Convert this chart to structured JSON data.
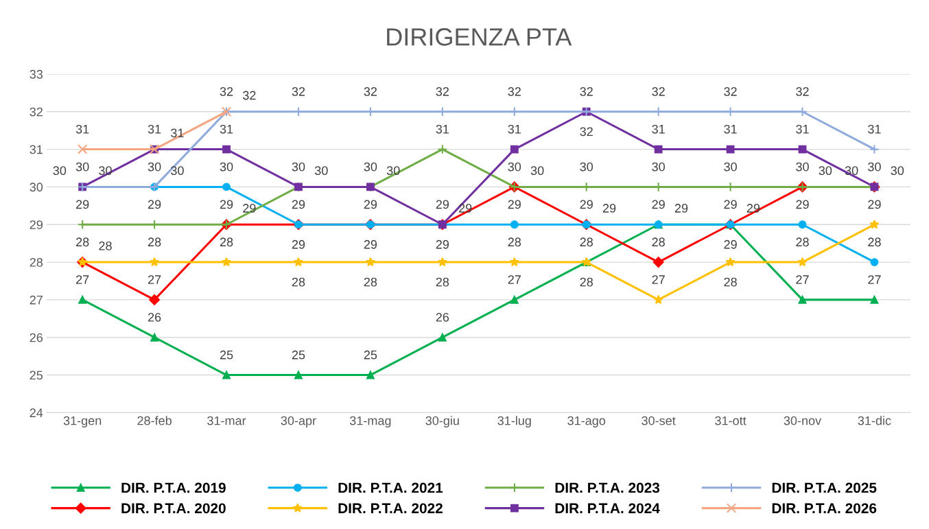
{
  "chart_data": {
    "type": "line",
    "title": "DIRIGENZA PTA",
    "categories": [
      "31-gen",
      "28-feb",
      "31-mar",
      "30-apr",
      "31-mag",
      "30-giu",
      "31-lug",
      "31-ago",
      "30-set",
      "31-ott",
      "30-nov",
      "31-dic"
    ],
    "series": [
      {
        "name": "DIR. P.T.A. 2019",
        "color": "#00b050",
        "marker": "triangle",
        "values": [
          27,
          26,
          25,
          25,
          25,
          26,
          27,
          28,
          29,
          29,
          27,
          27
        ]
      },
      {
        "name": "DIR. P.T.A. 2020",
        "color": "#ff0000",
        "marker": "diamond",
        "values": [
          28,
          27,
          29,
          29,
          29,
          29,
          30,
          29,
          28,
          29,
          30,
          30
        ]
      },
      {
        "name": "DIR. P.T.A. 2021",
        "color": "#00b0f0",
        "marker": "circle",
        "values": [
          30,
          30,
          30,
          29,
          29,
          29,
          29,
          29,
          29,
          29,
          29,
          28
        ]
      },
      {
        "name": "DIR. P.T.A. 2022",
        "color": "#ffc000",
        "marker": "star",
        "values": [
          28,
          28,
          28,
          28,
          28,
          28,
          28,
          28,
          27,
          28,
          28,
          29
        ]
      },
      {
        "name": "DIR. P.T.A. 2023",
        "color": "#70ad47",
        "marker": "cross",
        "values": [
          29,
          29,
          29,
          30,
          30,
          31,
          30,
          30,
          30,
          30,
          30,
          30
        ]
      },
      {
        "name": "DIR. P.T.A. 2024",
        "color": "#7030a0",
        "marker": "square",
        "values": [
          30,
          31,
          31,
          30,
          30,
          29,
          31,
          32,
          31,
          31,
          31,
          30
        ]
      },
      {
        "name": "DIR. P.T.A. 2025",
        "color": "#8faadc",
        "marker": "cross",
        "values": [
          30,
          30,
          32,
          32,
          32,
          32,
          32,
          32,
          32,
          32,
          32,
          31
        ]
      },
      {
        "name": "DIR. P.T.A. 2026",
        "color": "#f4a582",
        "marker": "x",
        "values": [
          31,
          31,
          32,
          null,
          null,
          null,
          null,
          null,
          null,
          null,
          null,
          null
        ]
      }
    ],
    "ylim": [
      24,
      33
    ],
    "yticks": [
      24,
      25,
      26,
      27,
      28,
      29,
      30,
      31,
      32,
      33
    ],
    "grid": "y",
    "legend": "bottom",
    "data_labels": true,
    "line_style": "solid"
  }
}
